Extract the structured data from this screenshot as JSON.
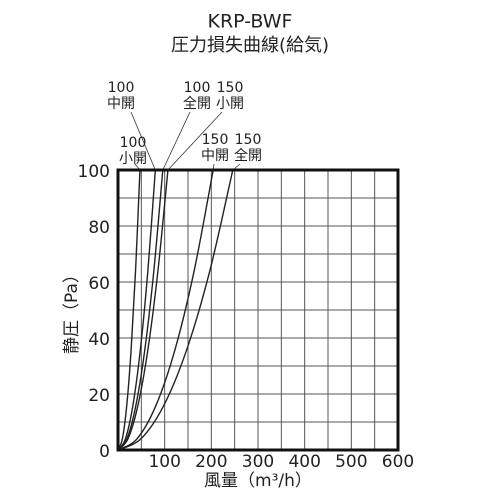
{
  "chart_data": {
    "type": "line",
    "title": "KRP-BWF",
    "subtitle": "圧力損失曲線(給気)",
    "y_label": "静圧（Pa）",
    "x_label": "風量（m³/h）",
    "xlim": [
      0,
      600
    ],
    "xticks": [
      100,
      200,
      300,
      400,
      500,
      600
    ],
    "ylim": [
      0,
      100
    ],
    "yticks": [
      0,
      20,
      40,
      60,
      80,
      100
    ],
    "xgrid": [
      50,
      100,
      150,
      200,
      250,
      300,
      350,
      400,
      450,
      500,
      550
    ],
    "ygrid": [
      10,
      20,
      30,
      40,
      50,
      60,
      70,
      80,
      90
    ],
    "series": [
      {
        "label": [
          "100",
          "小開"
        ],
        "color": "#222222",
        "x": [
          0,
          9.4,
          18.8,
          28.2,
          37.6,
          47
        ],
        "values": [
          0,
          4,
          16,
          36,
          64,
          100
        ]
      },
      {
        "label": [
          "100",
          "中開"
        ],
        "color": "#222222",
        "x": [
          0,
          16,
          32,
          48,
          64,
          80
        ],
        "values": [
          0,
          4,
          16,
          36,
          64,
          100
        ]
      },
      {
        "label": [
          "100",
          "全開"
        ],
        "color": "#222222",
        "x": [
          0,
          19.2,
          38.4,
          57.6,
          76.8,
          96
        ],
        "values": [
          0,
          4,
          16,
          36,
          64,
          100
        ]
      },
      {
        "label": [
          "150",
          "小開"
        ],
        "color": "#222222",
        "x": [
          0,
          21.4,
          42.8,
          64.2,
          85.6,
          107
        ],
        "values": [
          0,
          4,
          16,
          36,
          64,
          100
        ]
      },
      {
        "label": [
          "150",
          "中開"
        ],
        "color": "#222222",
        "x": [
          0,
          40.8,
          81.6,
          122.4,
          163.2,
          204
        ],
        "values": [
          0,
          4,
          16,
          36,
          64,
          100
        ]
      },
      {
        "label": [
          "150",
          "全開"
        ],
        "color": "#222222",
        "x": [
          0,
          49.2,
          98.4,
          147.6,
          196.8,
          246
        ],
        "values": [
          0,
          4,
          16,
          36,
          64,
          100
        ]
      }
    ]
  }
}
